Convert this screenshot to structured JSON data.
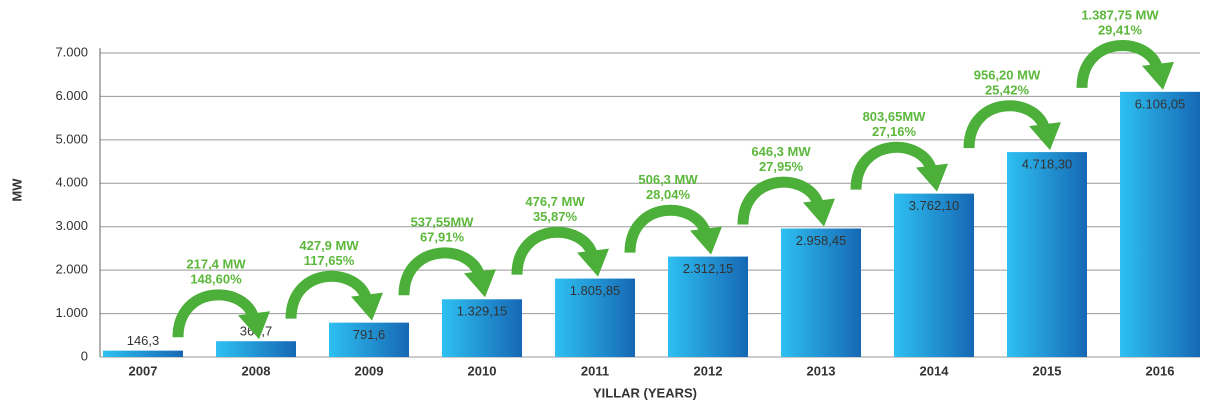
{
  "chart_data": {
    "type": "bar",
    "y_label": "MW",
    "x_label": "YILLAR (YEARS)",
    "categories": [
      "2007",
      "2008",
      "2009",
      "2010",
      "2011",
      "2012",
      "2013",
      "2014",
      "2015",
      "2016"
    ],
    "values": [
      146.3,
      363.7,
      791.6,
      1329.15,
      1805.85,
      2312.15,
      2958.45,
      3762.1,
      4718.3,
      6106.05
    ],
    "value_labels": [
      "146,3",
      "363,7",
      "791,6",
      "1.329,15",
      "1.805,85",
      "2.312,15",
      "2.958,45",
      "3.762,10",
      "4.718,30",
      "6.106,05"
    ],
    "color": "#1f88d0",
    "ylim": [
      0,
      7000
    ],
    "yticks": [
      0,
      {
        "value": 1000,
        "label": "1.000"
      },
      {
        "value": 2000,
        "label": "2.000"
      },
      {
        "value": 3000,
        "label": "3.000"
      },
      {
        "value": 4000,
        "label": "4.000"
      },
      {
        "value": 5000,
        "label": "5.000"
      },
      {
        "value": 6000,
        "label": "6.000"
      },
      {
        "value": 7000,
        "label": "7.000"
      }
    ],
    "grid": true,
    "annotations": [
      [
        "217,4 MW",
        "148,60%"
      ],
      [
        "427,9 MW",
        "117,65%"
      ],
      [
        "537,55MW",
        "67,91%"
      ],
      [
        "476,7 MW",
        "35,87%"
      ],
      [
        "506,3 MW",
        "28,04%"
      ],
      [
        "646,3 MW",
        "27,95%"
      ],
      [
        "803,65MW",
        "27,16%"
      ],
      [
        "956,20 MW",
        "25,42%"
      ],
      [
        "1.387,75 MW",
        "29,41%"
      ]
    ]
  }
}
